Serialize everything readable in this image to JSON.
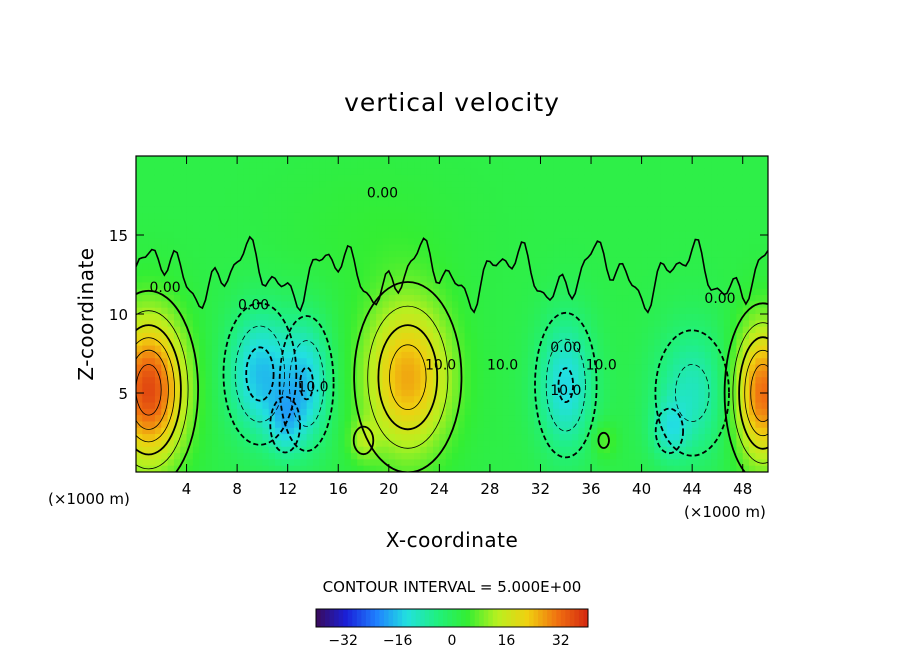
{
  "chart_data": {
    "type": "heatmap",
    "title": "vertical velocity",
    "xlabel": "X-coordinate",
    "ylabel": "Z-coordinate",
    "x_unit_label": "(×1000 m)",
    "xlim": [
      0,
      50
    ],
    "ylim": [
      0,
      20
    ],
    "x_ticks": [
      4,
      8,
      12,
      16,
      20,
      24,
      28,
      32,
      36,
      40,
      44,
      48
    ],
    "y_ticks": [
      5,
      10,
      15
    ],
    "contour_interval_label": "CONTOUR INTERVAL = 5.000E+00",
    "contour_interval": 5,
    "contour_labels": [
      {
        "text": "0.00",
        "x": 19.5,
        "y": 17.7
      },
      {
        "text": "0.00",
        "x": 2.3,
        "y": 11.7
      },
      {
        "text": "10.0",
        "x": 24.1,
        "y": 6.8
      },
      {
        "text": "10.0",
        "x": 29.0,
        "y": 6.8
      },
      {
        "text": "10.0",
        "x": 14.0,
        "y": 5.4
      },
      {
        "text": "10.0",
        "x": 36.8,
        "y": 6.8
      },
      {
        "text": "10.0",
        "x": 34.0,
        "y": 5.2
      },
      {
        "text": "0.00",
        "x": 46.2,
        "y": 11.0
      },
      {
        "text": "0.00",
        "x": 9.3,
        "y": 10.6
      },
      {
        "text": "0.00",
        "x": 34.0,
        "y": 7.9
      }
    ],
    "features": [
      {
        "sign": "up",
        "x": 1.0,
        "y": 5.2,
        "sx": 2.0,
        "sy": 3.2,
        "amp": 34
      },
      {
        "sign": "up",
        "x": 49.6,
        "y": 5.0,
        "sx": 1.6,
        "sy": 3.0,
        "amp": 30
      },
      {
        "sign": "up",
        "x": 21.5,
        "y": 6.0,
        "sx": 2.4,
        "sy": 3.4,
        "amp": 24
      },
      {
        "sign": "up",
        "x": 18.0,
        "y": 2.0,
        "sx": 0.8,
        "sy": 0.9,
        "amp": 8
      },
      {
        "sign": "up",
        "x": 37.0,
        "y": 2.0,
        "sx": 0.7,
        "sy": 0.8,
        "amp": 6
      },
      {
        "sign": "down",
        "x": 9.8,
        "y": 6.2,
        "sx": 1.8,
        "sy": 2.8,
        "amp": 18
      },
      {
        "sign": "down",
        "x": 13.5,
        "y": 5.6,
        "sx": 1.4,
        "sy": 2.8,
        "amp": 16
      },
      {
        "sign": "down",
        "x": 11.8,
        "y": 3.0,
        "sx": 1.0,
        "sy": 1.5,
        "amp": 10
      },
      {
        "sign": "down",
        "x": 34.0,
        "y": 5.5,
        "sx": 1.6,
        "sy": 3.0,
        "amp": 16
      },
      {
        "sign": "down",
        "x": 44.0,
        "y": 5.0,
        "sx": 2.2,
        "sy": 3.0,
        "amp": 12
      },
      {
        "sign": "down",
        "x": 42.2,
        "y": 2.6,
        "sx": 1.0,
        "sy": 1.3,
        "amp": 9
      },
      {
        "sign": "up",
        "x": 19.0,
        "y": 15.0,
        "sx": 5.0,
        "sy": 3.0,
        "amp": 2
      }
    ],
    "colorbar": {
      "ticks": [
        -32,
        -16,
        0,
        16,
        32
      ],
      "range": [
        -40,
        40
      ],
      "colors": [
        "#3a0a5a",
        "#1a20d8",
        "#1f80ff",
        "#22e0e0",
        "#20f080",
        "#33ee33",
        "#b8f020",
        "#f0d010",
        "#f07010",
        "#d42810"
      ]
    },
    "grid": false,
    "legend": "colorbar-bottom"
  }
}
